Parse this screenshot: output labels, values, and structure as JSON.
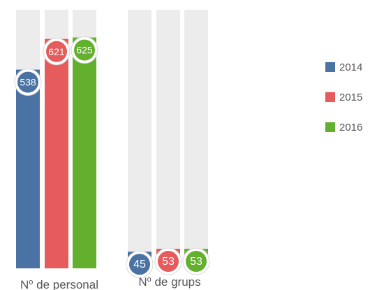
{
  "chart_data": {
    "type": "bar",
    "categories": [
      "Nº de personal",
      "Nº de grups"
    ],
    "series": [
      {
        "name": "2014",
        "color": "#4a73a3",
        "values": [
          538,
          45
        ]
      },
      {
        "name": "2015",
        "color": "#e65b5b",
        "values": [
          621,
          53
        ]
      },
      {
        "name": "2016",
        "color": "#63b02f",
        "values": [
          625,
          53
        ]
      }
    ],
    "ylim": [
      0,
      700
    ],
    "track_color": "#ececec",
    "legend_position": "right",
    "grid": false
  },
  "category_labels": {
    "personal": {
      "prefix": "N",
      "superscript": "o",
      "rest": " de personal"
    },
    "grups": {
      "prefix": "N",
      "superscript": "o",
      "rest": " de grups"
    }
  }
}
